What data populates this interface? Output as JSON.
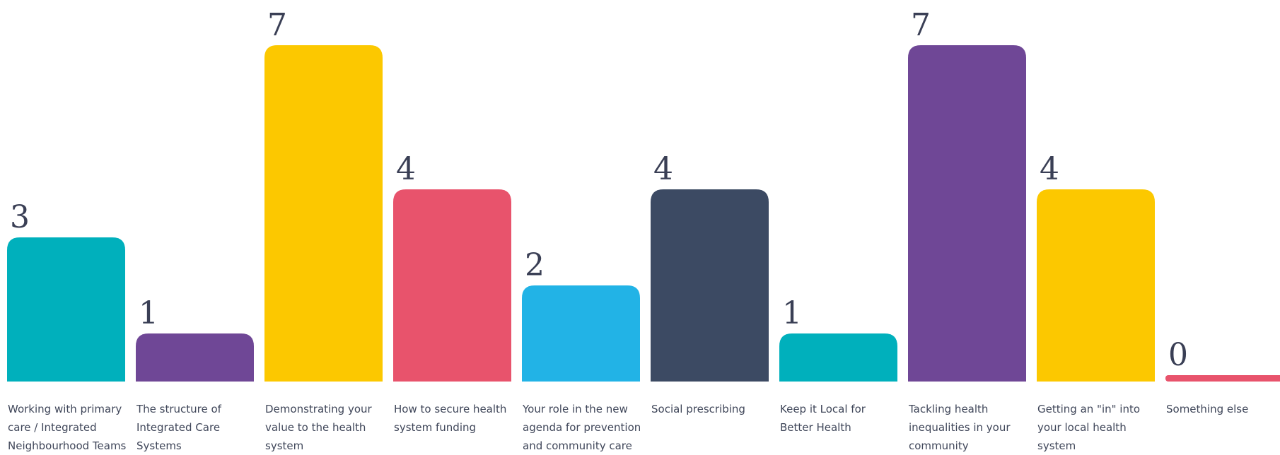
{
  "chart_data": {
    "type": "bar",
    "categories": [
      "Working with primary care / Integrated Neighbourhood Teams",
      "The structure of Integrated Care Systems",
      "Demonstrating your value to the health system",
      "How to secure health system funding",
      "Your role in the new agenda for prevention and community care",
      "Social prescribing",
      "Keep it Local for Better Health",
      "Tackling health inequalities in your community",
      "Getting an \"in\" into your local health system",
      "Something else"
    ],
    "values": [
      3,
      1,
      7,
      4,
      2,
      4,
      1,
      7,
      4,
      0
    ],
    "value_labels": [
      "3",
      "1",
      "7",
      "4",
      "2",
      "4",
      "1",
      "7",
      "4",
      "0"
    ],
    "colors": [
      "#00b0bc",
      "#6f4796",
      "#fcc800",
      "#e8536c",
      "#22b3e6",
      "#3c4a63",
      "#00b0bc",
      "#6f4796",
      "#fcc800",
      "#e8536c"
    ],
    "ylim": [
      0,
      7
    ],
    "grid": false,
    "legend": "none"
  }
}
